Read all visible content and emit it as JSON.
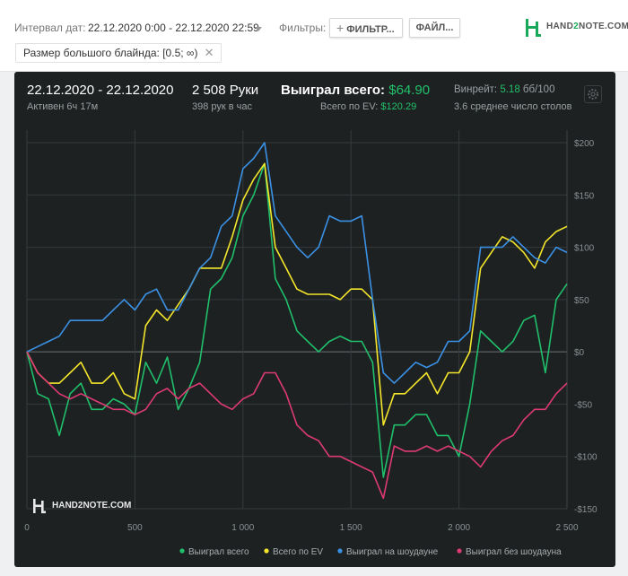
{
  "toolbar": {
    "interval_label": "Интервал дат:",
    "interval_value": "22.12.2020 0:00 - 22.12.2020 22:59",
    "filters_label": "Фильтры:",
    "filter_button": "ФИЛЬТР...",
    "files_button": "ФАЙЛ...",
    "active_filter": "Размер большого блайнда: [0.5; ∞)",
    "brand_pre": "HAND",
    "brand_two": "2",
    "brand_post": "NOTE.COM"
  },
  "stats": {
    "date_range": "22.12.2020 - 22.12.2020",
    "active": "Активен 6ч 17м",
    "hands": "2 508 Руки",
    "hands_per_hour": "398 рук в час",
    "won_total_label": "Выиграл всего:",
    "won_total_value": "$64.90",
    "ev_label": "Всего по EV:",
    "ev_value": "$120.29",
    "winrate_label": "Винрейт:",
    "winrate_value": "5.18",
    "winrate_unit": "бб/100",
    "tables": "3.6 среднее число столов"
  },
  "watermark": "HAND2NOTE.COM",
  "chart_data": {
    "type": "line",
    "xlim": [
      0,
      2500
    ],
    "ylim": [
      -150,
      200
    ],
    "x_ticks": [
      0,
      500,
      1000,
      1500,
      2000,
      2500
    ],
    "x_tick_labels": [
      "0",
      "500",
      "1 000",
      "1 500",
      "2 000",
      "2 500"
    ],
    "y_ticks": [
      200,
      150,
      100,
      50,
      0,
      -50,
      -100,
      -150
    ],
    "y_tick_labels": [
      "$200",
      "$150",
      "$100",
      "$50",
      "$0",
      "-$50",
      "-$100",
      "-$150"
    ],
    "grid": true,
    "legend_position": "bottom",
    "series": [
      {
        "name": "Выиграл всего",
        "color": "#20bf6b",
        "points": [
          [
            0,
            0
          ],
          [
            50,
            -40
          ],
          [
            100,
            -45
          ],
          [
            150,
            -80
          ],
          [
            200,
            -40
          ],
          [
            250,
            -30
          ],
          [
            300,
            -55
          ],
          [
            350,
            -55
          ],
          [
            400,
            -45
          ],
          [
            450,
            -50
          ],
          [
            500,
            -60
          ],
          [
            550,
            -10
          ],
          [
            600,
            -30
          ],
          [
            650,
            -5
          ],
          [
            700,
            -55
          ],
          [
            750,
            -35
          ],
          [
            800,
            -10
          ],
          [
            850,
            60
          ],
          [
            900,
            70
          ],
          [
            950,
            90
          ],
          [
            1000,
            130
          ],
          [
            1050,
            150
          ],
          [
            1100,
            180
          ],
          [
            1150,
            70
          ],
          [
            1200,
            50
          ],
          [
            1250,
            20
          ],
          [
            1300,
            10
          ],
          [
            1350,
            0
          ],
          [
            1400,
            10
          ],
          [
            1450,
            15
          ],
          [
            1500,
            10
          ],
          [
            1550,
            10
          ],
          [
            1600,
            -10
          ],
          [
            1650,
            -120
          ],
          [
            1700,
            -70
          ],
          [
            1750,
            -70
          ],
          [
            1800,
            -60
          ],
          [
            1850,
            -60
          ],
          [
            1900,
            -80
          ],
          [
            1950,
            -80
          ],
          [
            2000,
            -100
          ],
          [
            2050,
            -50
          ],
          [
            2100,
            20
          ],
          [
            2150,
            10
          ],
          [
            2200,
            0
          ],
          [
            2250,
            10
          ],
          [
            2300,
            30
          ],
          [
            2350,
            35
          ],
          [
            2400,
            -20
          ],
          [
            2450,
            50
          ],
          [
            2500,
            65
          ]
        ]
      },
      {
        "name": "Всего по EV",
        "color": "#f4e62b",
        "points": [
          [
            0,
            0
          ],
          [
            50,
            -20
          ],
          [
            100,
            -30
          ],
          [
            150,
            -30
          ],
          [
            200,
            -20
          ],
          [
            250,
            -10
          ],
          [
            300,
            -30
          ],
          [
            350,
            -30
          ],
          [
            400,
            -20
          ],
          [
            450,
            -40
          ],
          [
            500,
            -45
          ],
          [
            550,
            25
          ],
          [
            600,
            40
          ],
          [
            650,
            30
          ],
          [
            700,
            45
          ],
          [
            750,
            60
          ],
          [
            800,
            80
          ],
          [
            850,
            80
          ],
          [
            900,
            80
          ],
          [
            950,
            110
          ],
          [
            1000,
            145
          ],
          [
            1050,
            165
          ],
          [
            1100,
            180
          ],
          [
            1150,
            100
          ],
          [
            1200,
            80
          ],
          [
            1250,
            60
          ],
          [
            1300,
            55
          ],
          [
            1350,
            55
          ],
          [
            1400,
            55
          ],
          [
            1450,
            50
          ],
          [
            1500,
            60
          ],
          [
            1550,
            60
          ],
          [
            1600,
            50
          ],
          [
            1650,
            -70
          ],
          [
            1700,
            -40
          ],
          [
            1750,
            -40
          ],
          [
            1800,
            -30
          ],
          [
            1850,
            -20
          ],
          [
            1900,
            -40
          ],
          [
            1950,
            -20
          ],
          [
            2000,
            -20
          ],
          [
            2050,
            0
          ],
          [
            2100,
            80
          ],
          [
            2150,
            95
          ],
          [
            2200,
            110
          ],
          [
            2250,
            105
          ],
          [
            2300,
            95
          ],
          [
            2350,
            80
          ],
          [
            2400,
            105
          ],
          [
            2450,
            115
          ],
          [
            2500,
            120
          ]
        ]
      },
      {
        "name": "Выиграл на шоудауне",
        "color": "#3a91e4",
        "points": [
          [
            0,
            0
          ],
          [
            50,
            5
          ],
          [
            100,
            10
          ],
          [
            150,
            15
          ],
          [
            200,
            30
          ],
          [
            250,
            30
          ],
          [
            300,
            30
          ],
          [
            350,
            30
          ],
          [
            400,
            40
          ],
          [
            450,
            50
          ],
          [
            500,
            40
          ],
          [
            550,
            55
          ],
          [
            600,
            60
          ],
          [
            650,
            40
          ],
          [
            700,
            40
          ],
          [
            750,
            60
          ],
          [
            800,
            80
          ],
          [
            850,
            90
          ],
          [
            900,
            120
          ],
          [
            950,
            130
          ],
          [
            1000,
            175
          ],
          [
            1050,
            185
          ],
          [
            1100,
            200
          ],
          [
            1150,
            130
          ],
          [
            1200,
            115
          ],
          [
            1250,
            100
          ],
          [
            1300,
            90
          ],
          [
            1350,
            100
          ],
          [
            1400,
            130
          ],
          [
            1450,
            125
          ],
          [
            1500,
            125
          ],
          [
            1550,
            130
          ],
          [
            1600,
            50
          ],
          [
            1650,
            -20
          ],
          [
            1700,
            -30
          ],
          [
            1750,
            -20
          ],
          [
            1800,
            -10
          ],
          [
            1850,
            -15
          ],
          [
            1900,
            -10
          ],
          [
            1950,
            10
          ],
          [
            2000,
            10
          ],
          [
            2050,
            20
          ],
          [
            2100,
            100
          ],
          [
            2150,
            100
          ],
          [
            2200,
            100
          ],
          [
            2250,
            110
          ],
          [
            2300,
            100
          ],
          [
            2350,
            90
          ],
          [
            2400,
            85
          ],
          [
            2450,
            100
          ],
          [
            2500,
            95
          ]
        ]
      },
      {
        "name": "Выиграл без шоудауна",
        "color": "#dd3a74",
        "points": [
          [
            0,
            0
          ],
          [
            50,
            -20
          ],
          [
            100,
            -30
          ],
          [
            150,
            -40
          ],
          [
            200,
            -45
          ],
          [
            250,
            -40
          ],
          [
            300,
            -45
          ],
          [
            350,
            -50
          ],
          [
            400,
            -55
          ],
          [
            450,
            -55
          ],
          [
            500,
            -60
          ],
          [
            550,
            -55
          ],
          [
            600,
            -40
          ],
          [
            650,
            -35
          ],
          [
            700,
            -45
          ],
          [
            750,
            -35
          ],
          [
            800,
            -30
          ],
          [
            850,
            -40
          ],
          [
            900,
            -50
          ],
          [
            950,
            -55
          ],
          [
            1000,
            -45
          ],
          [
            1050,
            -40
          ],
          [
            1100,
            -20
          ],
          [
            1150,
            -20
          ],
          [
            1200,
            -40
          ],
          [
            1250,
            -70
          ],
          [
            1300,
            -80
          ],
          [
            1350,
            -85
          ],
          [
            1400,
            -100
          ],
          [
            1450,
            -100
          ],
          [
            1500,
            -105
          ],
          [
            1550,
            -110
          ],
          [
            1600,
            -115
          ],
          [
            1650,
            -140
          ],
          [
            1700,
            -90
          ],
          [
            1750,
            -95
          ],
          [
            1800,
            -95
          ],
          [
            1850,
            -90
          ],
          [
            1900,
            -95
          ],
          [
            1950,
            -90
          ],
          [
            2000,
            -95
          ],
          [
            2050,
            -100
          ],
          [
            2100,
            -110
          ],
          [
            2150,
            -95
          ],
          [
            2200,
            -85
          ],
          [
            2250,
            -80
          ],
          [
            2300,
            -65
          ],
          [
            2350,
            -55
          ],
          [
            2400,
            -55
          ],
          [
            2450,
            -40
          ],
          [
            2500,
            -30
          ]
        ]
      }
    ]
  }
}
